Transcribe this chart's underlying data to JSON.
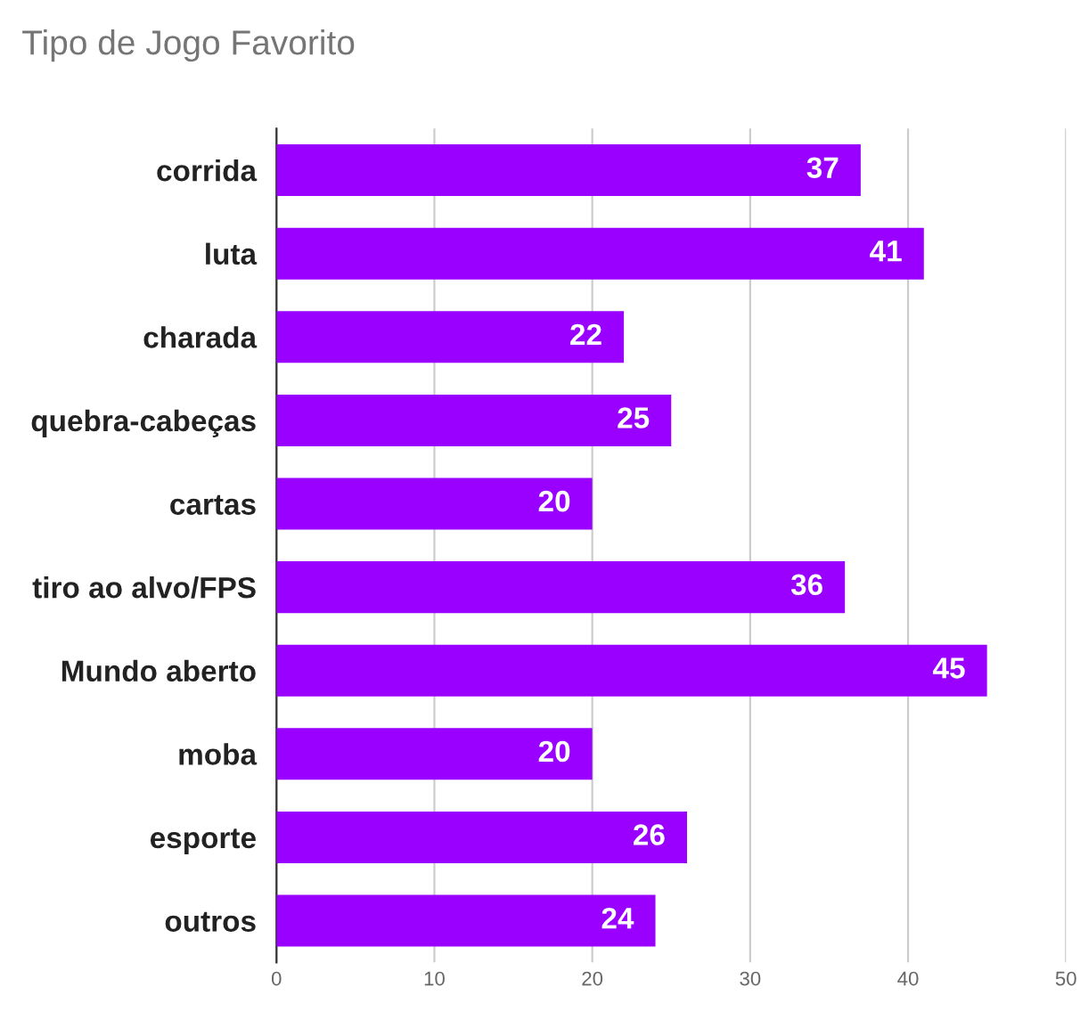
{
  "chart_data": {
    "type": "bar",
    "orientation": "horizontal",
    "title": "Tipo de Jogo Favorito",
    "categories": [
      "corrida",
      "luta",
      "charada",
      "quebra-cabeças",
      "cartas",
      "tiro ao alvo/FPS",
      "Mundo aberto",
      "moba",
      "esporte",
      "outros"
    ],
    "values": [
      37,
      41,
      22,
      25,
      20,
      36,
      45,
      20,
      26,
      24
    ],
    "color": "#9900ff",
    "xlim": [
      0,
      50
    ],
    "xticks": [
      0,
      10,
      20,
      30,
      40,
      50
    ],
    "grid": "x",
    "data_labels": true
  }
}
